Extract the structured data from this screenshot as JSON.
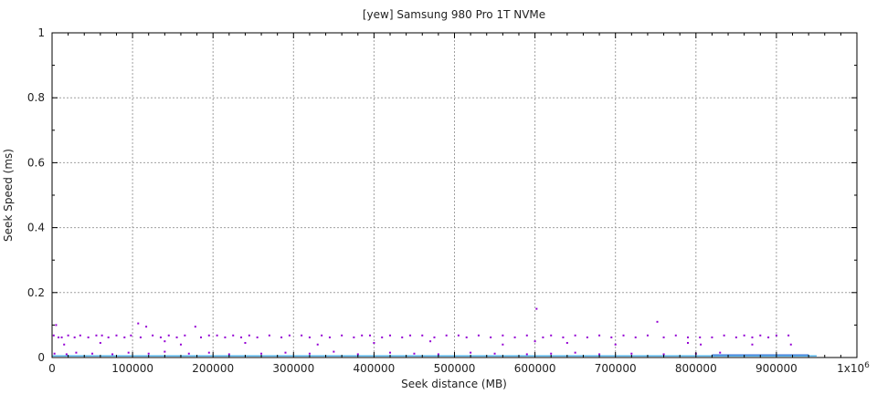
{
  "chart_data": {
    "type": "scatter",
    "title": "[yew] Samsung 980 Pro 1T NVMe",
    "xlabel": "Seek distance (MB)",
    "ylabel": "Seek Speed (ms)",
    "xlim": [
      0,
      1000000
    ],
    "ylim": [
      0,
      1
    ],
    "xticks": [
      "0",
      "100000",
      "200000",
      "300000",
      "400000",
      "500000",
      "600000",
      "700000",
      "800000",
      "900000",
      "1x10"
    ],
    "xtick_last_exponent": "6",
    "yticks": [
      "0",
      "0.2",
      "0.4",
      "0.6",
      "0.8",
      "1"
    ],
    "grid": true,
    "colors": {
      "points": "#9400d3",
      "line": "#56b4e9",
      "dense": "#2060d0",
      "grid": "#a0a0a0"
    },
    "line": {
      "x": [
        0,
        950000
      ],
      "y": [
        0.005,
        0.005
      ]
    },
    "dense_band": {
      "x": [
        820000,
        940000
      ],
      "y": 0.008
    },
    "points": [
      [
        5000,
        0.1
      ],
      [
        2000,
        0.068
      ],
      [
        8000,
        0.062
      ],
      [
        12000,
        0.062
      ],
      [
        20000,
        0.068
      ],
      [
        28000,
        0.062
      ],
      [
        35000,
        0.068
      ],
      [
        45000,
        0.062
      ],
      [
        55000,
        0.068
      ],
      [
        62000,
        0.068
      ],
      [
        70000,
        0.062
      ],
      [
        80000,
        0.068
      ],
      [
        90000,
        0.062
      ],
      [
        98000,
        0.068
      ],
      [
        107000,
        0.105
      ],
      [
        117000,
        0.095
      ],
      [
        110000,
        0.062
      ],
      [
        125000,
        0.068
      ],
      [
        135000,
        0.062
      ],
      [
        145000,
        0.068
      ],
      [
        155000,
        0.062
      ],
      [
        165000,
        0.068
      ],
      [
        178000,
        0.095
      ],
      [
        185000,
        0.062
      ],
      [
        195000,
        0.068
      ],
      [
        205000,
        0.068
      ],
      [
        215000,
        0.062
      ],
      [
        225000,
        0.068
      ],
      [
        235000,
        0.062
      ],
      [
        245000,
        0.068
      ],
      [
        255000,
        0.062
      ],
      [
        270000,
        0.068
      ],
      [
        285000,
        0.062
      ],
      [
        295000,
        0.068
      ],
      [
        310000,
        0.068
      ],
      [
        320000,
        0.062
      ],
      [
        335000,
        0.068
      ],
      [
        345000,
        0.062
      ],
      [
        360000,
        0.068
      ],
      [
        375000,
        0.062
      ],
      [
        385000,
        0.068
      ],
      [
        395000,
        0.068
      ],
      [
        410000,
        0.062
      ],
      [
        420000,
        0.068
      ],
      [
        435000,
        0.062
      ],
      [
        445000,
        0.068
      ],
      [
        460000,
        0.068
      ],
      [
        475000,
        0.062
      ],
      [
        490000,
        0.068
      ],
      [
        505000,
        0.068
      ],
      [
        515000,
        0.062
      ],
      [
        530000,
        0.068
      ],
      [
        545000,
        0.062
      ],
      [
        560000,
        0.068
      ],
      [
        575000,
        0.062
      ],
      [
        590000,
        0.068
      ],
      [
        602000,
        0.15
      ],
      [
        610000,
        0.062
      ],
      [
        620000,
        0.068
      ],
      [
        635000,
        0.062
      ],
      [
        650000,
        0.068
      ],
      [
        665000,
        0.062
      ],
      [
        680000,
        0.068
      ],
      [
        695000,
        0.062
      ],
      [
        710000,
        0.068
      ],
      [
        725000,
        0.062
      ],
      [
        740000,
        0.068
      ],
      [
        752000,
        0.11
      ],
      [
        760000,
        0.062
      ],
      [
        775000,
        0.068
      ],
      [
        790000,
        0.062
      ],
      [
        805000,
        0.062
      ],
      [
        820000,
        0.062
      ],
      [
        835000,
        0.068
      ],
      [
        850000,
        0.062
      ],
      [
        860000,
        0.068
      ],
      [
        870000,
        0.062
      ],
      [
        880000,
        0.068
      ],
      [
        890000,
        0.062
      ],
      [
        900000,
        0.068
      ],
      [
        915000,
        0.068
      ],
      [
        918000,
        0.04
      ],
      [
        15000,
        0.04
      ],
      [
        60000,
        0.045
      ],
      [
        140000,
        0.05
      ],
      [
        160000,
        0.04
      ],
      [
        240000,
        0.045
      ],
      [
        330000,
        0.04
      ],
      [
        400000,
        0.045
      ],
      [
        470000,
        0.05
      ],
      [
        560000,
        0.04
      ],
      [
        600000,
        0.05
      ],
      [
        640000,
        0.045
      ],
      [
        700000,
        0.04
      ],
      [
        790000,
        0.045
      ],
      [
        806000,
        0.04
      ],
      [
        870000,
        0.04
      ],
      [
        3000,
        0.012
      ],
      [
        18000,
        0.01
      ],
      [
        30000,
        0.015
      ],
      [
        50000,
        0.012
      ],
      [
        75000,
        0.01
      ],
      [
        95000,
        0.015
      ],
      [
        120000,
        0.012
      ],
      [
        140000,
        0.018
      ],
      [
        170000,
        0.012
      ],
      [
        195000,
        0.015
      ],
      [
        220000,
        0.01
      ],
      [
        260000,
        0.012
      ],
      [
        290000,
        0.015
      ],
      [
        320000,
        0.012
      ],
      [
        350000,
        0.018
      ],
      [
        380000,
        0.01
      ],
      [
        420000,
        0.015
      ],
      [
        450000,
        0.012
      ],
      [
        480000,
        0.01
      ],
      [
        520000,
        0.015
      ],
      [
        550000,
        0.012
      ],
      [
        590000,
        0.01
      ],
      [
        620000,
        0.012
      ],
      [
        650000,
        0.015
      ],
      [
        680000,
        0.01
      ],
      [
        720000,
        0.012
      ],
      [
        760000,
        0.01
      ],
      [
        800000,
        0.012
      ],
      [
        830000,
        0.015
      ]
    ]
  }
}
